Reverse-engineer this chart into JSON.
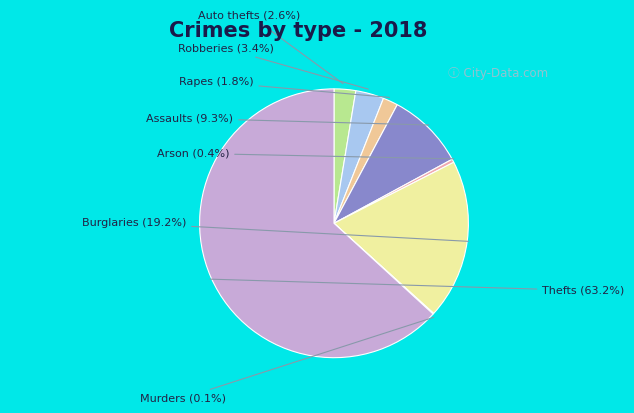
{
  "title": "Crimes by type - 2018",
  "title_fontsize": 15,
  "title_fontweight": "bold",
  "title_color": "#1a1a4a",
  "labels": [
    "Thefts",
    "Burglaries",
    "Assaults",
    "Auto thefts",
    "Robberies",
    "Rapes",
    "Arson",
    "Murders"
  ],
  "values": [
    63.2,
    19.2,
    9.3,
    2.6,
    3.4,
    1.8,
    0.4,
    0.1
  ],
  "colors": [
    "#c8aad8",
    "#f0f0a0",
    "#8888cc",
    "#b8e890",
    "#a8c8f0",
    "#f0c898",
    "#f0a8b0",
    "#fffff0"
  ],
  "bg_cyan": "#00e8e8",
  "bg_main": "#ddeedd",
  "label_color": "#222244",
  "label_fontsize": 8,
  "watermark_color": "#aabccc",
  "order_indices": [
    3,
    4,
    5,
    2,
    6,
    1,
    7,
    0
  ]
}
